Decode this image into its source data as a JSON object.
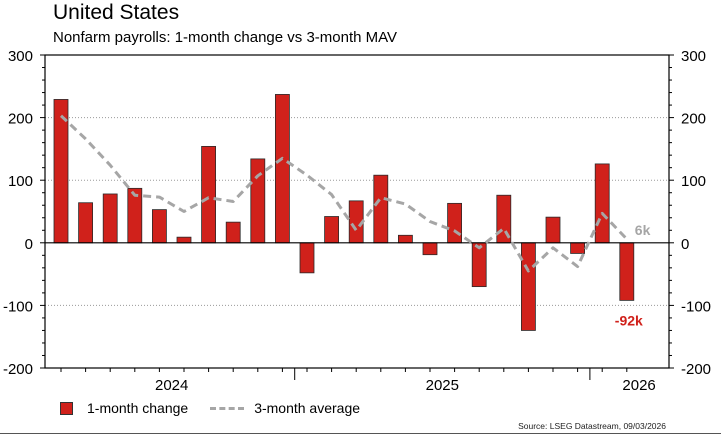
{
  "chart_data": {
    "type": "bar+line",
    "title": "United States",
    "subtitle": "Nonfarm payrolls: 1-month change vs 3-month MAV",
    "ylim": [
      -200,
      300
    ],
    "yticks": [
      -200,
      -100,
      0,
      100,
      200,
      300
    ],
    "grid": true,
    "x_year_labels": [
      {
        "label": "2024",
        "center_index": 4.5
      },
      {
        "label": "2025",
        "center_index": 15.5
      },
      {
        "label": "2026",
        "center_index": 23.5
      }
    ],
    "year_dividers": [
      10,
      22
    ],
    "series": [
      {
        "name": "1-month change",
        "type": "bar",
        "color": "#d0211b",
        "values": [
          229,
          64,
          78,
          87,
          53,
          9,
          154,
          33,
          134,
          237,
          -48,
          42,
          67,
          108,
          12,
          -19,
          63,
          -70,
          76,
          -140,
          41,
          -17,
          126,
          -92
        ]
      },
      {
        "name": "3-month average",
        "type": "line",
        "color": "#a6a6a6",
        "values": [
          203,
          166,
          124,
          76,
          73,
          50,
          72,
          66,
          107,
          135,
          108,
          77,
          20,
          72,
          62,
          34,
          19,
          -8,
          23,
          -45,
          -8,
          -38,
          47,
          6
        ]
      }
    ],
    "annotations": [
      {
        "text": "6k",
        "color": "#a6a6a6",
        "series": "3-month average",
        "index": 23
      },
      {
        "text": "-92k",
        "color": "#d0211b",
        "series": "1-month change",
        "index": 23
      }
    ]
  },
  "legend": {
    "bar": "1-month change",
    "line": "3-month average"
  },
  "source": "Source: LSEG Datastream, 09/03/2026"
}
